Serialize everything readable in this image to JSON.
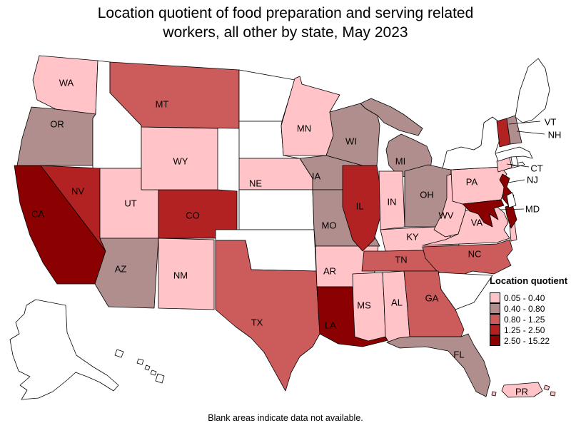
{
  "title": {
    "line1": "Location quotient of food preparation and serving related",
    "line2": "workers, all other by state, May 2023"
  },
  "footnote": "Blank areas indicate data not available.",
  "legend": {
    "title": "Location quotient",
    "no_data_color": "#FFFFFF",
    "classes": [
      {
        "label": "0.05 - 0.40",
        "color": "#FFC3C8"
      },
      {
        "label": "0.40 - 0.80",
        "color": "#B08E8E"
      },
      {
        "label": "0.80 - 1.25",
        "color": "#CC5C5C"
      },
      {
        "label": "1.25 - 2.50",
        "color": "#B22222"
      },
      {
        "label": "2.50 - 15.22",
        "color": "#8B0000"
      }
    ]
  },
  "map": {
    "states": [
      {
        "abbr": "WA",
        "class": 1
      },
      {
        "abbr": "OR",
        "class": 2
      },
      {
        "abbr": "CA",
        "class": 5
      },
      {
        "abbr": "ID",
        "class": 0
      },
      {
        "abbr": "NV",
        "class": 4
      },
      {
        "abbr": "UT",
        "class": 1
      },
      {
        "abbr": "AZ",
        "class": 2
      },
      {
        "abbr": "NM",
        "class": 1
      },
      {
        "abbr": "CO",
        "class": 4
      },
      {
        "abbr": "WY",
        "class": 1
      },
      {
        "abbr": "MT",
        "class": 3
      },
      {
        "abbr": "ND",
        "class": 0
      },
      {
        "abbr": "SD",
        "class": 0
      },
      {
        "abbr": "NE",
        "class": 1
      },
      {
        "abbr": "KS",
        "class": 0
      },
      {
        "abbr": "OK",
        "class": 0
      },
      {
        "abbr": "TX",
        "class": 3
      },
      {
        "abbr": "MN",
        "class": 1
      },
      {
        "abbr": "IA",
        "class": 2
      },
      {
        "abbr": "MO",
        "class": 2
      },
      {
        "abbr": "AR",
        "class": 1
      },
      {
        "abbr": "LA",
        "class": 5
      },
      {
        "abbr": "MS",
        "class": 1
      },
      {
        "abbr": "AL",
        "class": 1
      },
      {
        "abbr": "WI",
        "class": 2
      },
      {
        "abbr": "MI",
        "class": 2
      },
      {
        "abbr": "IL",
        "class": 4
      },
      {
        "abbr": "IN",
        "class": 1
      },
      {
        "abbr": "OH",
        "class": 2
      },
      {
        "abbr": "KY",
        "class": 1
      },
      {
        "abbr": "TN",
        "class": 3
      },
      {
        "abbr": "WV",
        "class": 1
      },
      {
        "abbr": "VA",
        "class": 1
      },
      {
        "abbr": "NC",
        "class": 3
      },
      {
        "abbr": "SC",
        "class": 0
      },
      {
        "abbr": "GA",
        "class": 3
      },
      {
        "abbr": "FL",
        "class": 2
      },
      {
        "abbr": "PA",
        "class": 1
      },
      {
        "abbr": "NY",
        "class": 0
      },
      {
        "abbr": "NJ",
        "class": 5
      },
      {
        "abbr": "CT",
        "class": 1
      },
      {
        "abbr": "RI",
        "class": 0
      },
      {
        "abbr": "MA",
        "class": 0
      },
      {
        "abbr": "VT",
        "class": 4
      },
      {
        "abbr": "NH",
        "class": 2
      },
      {
        "abbr": "ME",
        "class": 0
      },
      {
        "abbr": "MD",
        "class": 5
      },
      {
        "abbr": "DE",
        "class": 0
      },
      {
        "abbr": "AK",
        "class": 0
      },
      {
        "abbr": "HI",
        "class": 0
      },
      {
        "abbr": "PR",
        "class": 1
      }
    ]
  }
}
